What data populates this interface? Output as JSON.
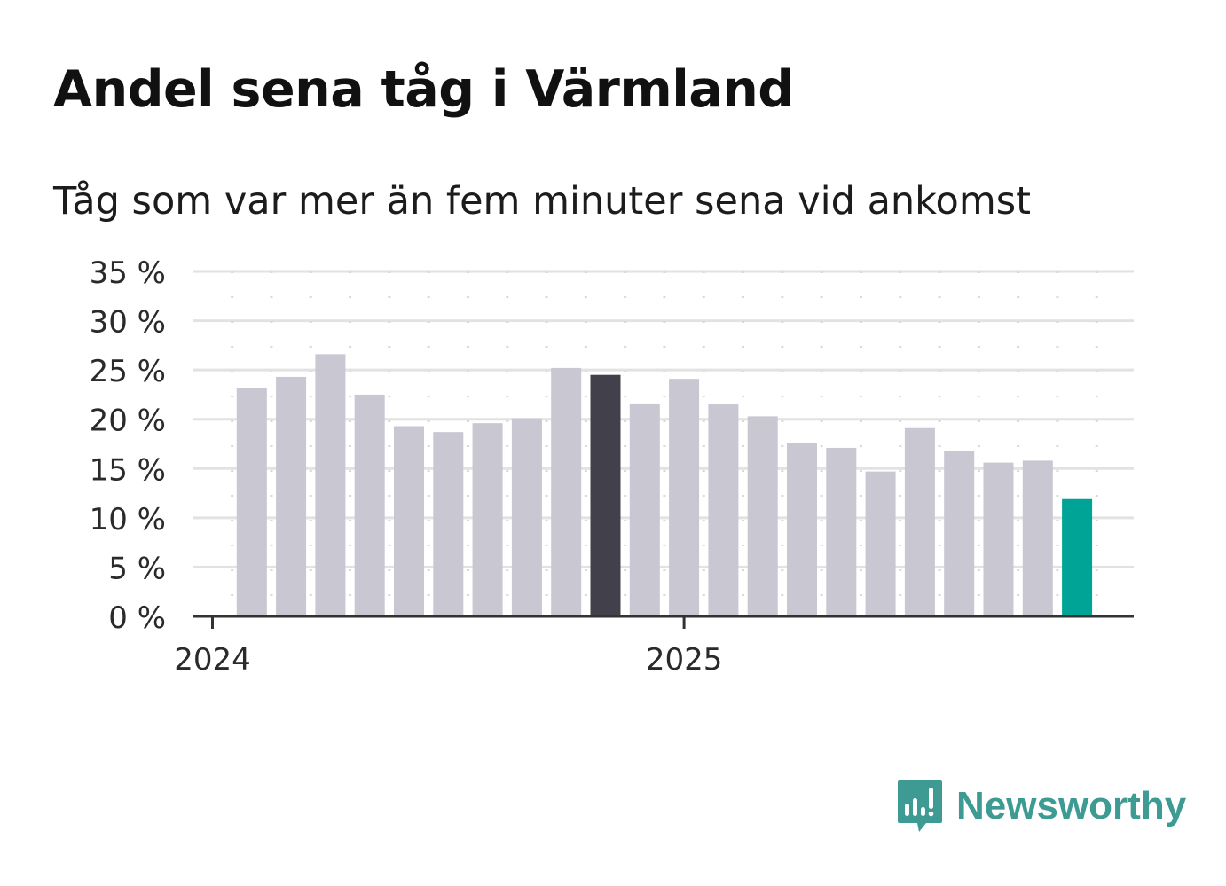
{
  "header": {
    "title": "Andel sena tåg i Värmland",
    "subtitle": "Tåg som var mer än fem minuter sena vid ankomst"
  },
  "chart_data": {
    "type": "bar",
    "title": "Andel sena tåg i Värmland",
    "subtitle": "Tåg som var mer än fem minuter sena vid ankomst",
    "xlabel": "",
    "ylabel": "",
    "ylim": [
      0,
      35
    ],
    "yticks": [
      0,
      5,
      10,
      15,
      20,
      25,
      30,
      35
    ],
    "ytick_labels": [
      "0 %",
      "5 %",
      "10 %",
      "15 %",
      "20 %",
      "25 %",
      "30 %",
      "35 %"
    ],
    "x_tick_labels": [
      "2024",
      "2025"
    ],
    "categories": [
      "2024-01",
      "2024-02",
      "2024-03",
      "2024-04",
      "2024-05",
      "2024-06",
      "2024-07",
      "2024-08",
      "2024-09",
      "2024-10",
      "2024-11",
      "2024-12",
      "2025-01",
      "2025-02",
      "2025-03",
      "2025-04",
      "2025-05",
      "2025-06",
      "2025-07",
      "2025-08",
      "2025-09",
      "2025-10",
      "2025-11",
      "2025-12"
    ],
    "values": [
      null,
      23.2,
      24.3,
      26.6,
      22.5,
      19.3,
      18.7,
      19.6,
      20.1,
      25.2,
      24.5,
      21.6,
      24.1,
      21.5,
      20.3,
      17.6,
      17.1,
      14.7,
      19.1,
      16.8,
      15.6,
      15.8,
      11.9,
      null
    ],
    "grid": true,
    "legend": "none",
    "colors": {
      "default": "#c8c7d2",
      "highlight": "#42404b",
      "latest": "#00a497",
      "grid": "#e2e2e2",
      "axis": "#333333"
    },
    "highlight_index": 10,
    "latest_index": 22
  },
  "logo": {
    "text": "Newsworthy",
    "icon": "newsworthy-chat-bars-icon",
    "color": "#3d9b93"
  }
}
